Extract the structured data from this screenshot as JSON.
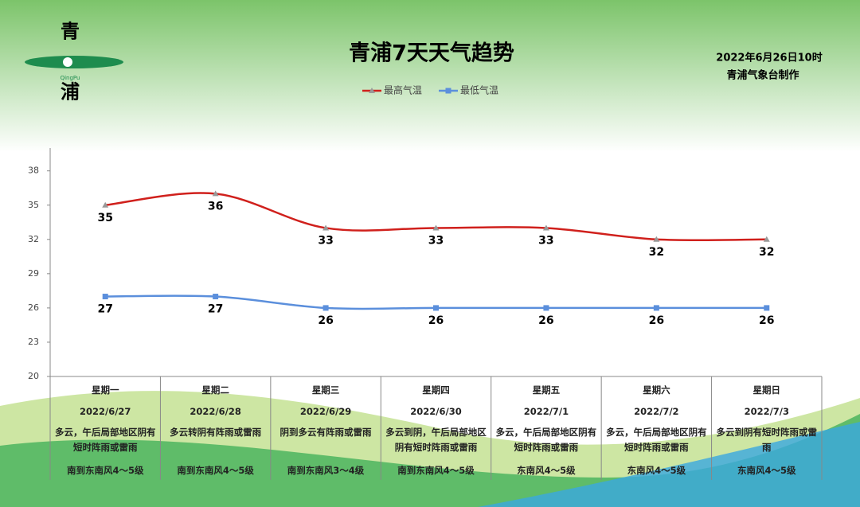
{
  "header": {
    "logo_top": "青",
    "logo_bottom": "浦",
    "logo_latin": "QingPu",
    "issued": "2022年6月26日10时",
    "issuer": "青浦气象台制作"
  },
  "chart_data": {
    "type": "line",
    "title": "青浦7天天气趋势",
    "categories": [
      "星期一",
      "星期二",
      "星期三",
      "星期四",
      "星期五",
      "星期六",
      "星期日"
    ],
    "series": [
      {
        "name": "最高气温",
        "color": "#d0201c",
        "marker": "triangle",
        "values": [
          35,
          36,
          33,
          33,
          33,
          32,
          32
        ]
      },
      {
        "name": "最低气温",
        "color": "#5b8fdc",
        "marker": "square",
        "values": [
          27,
          27,
          26,
          26,
          26,
          26,
          26
        ]
      }
    ],
    "ylim": [
      20,
      40
    ],
    "yticks": [
      20,
      23,
      26,
      29,
      32,
      35,
      38
    ],
    "legend": "top",
    "smooth": true
  },
  "table": {
    "dates": [
      "2022/6/27",
      "2022/6/28",
      "2022/6/29",
      "2022/6/30",
      "2022/7/1",
      "2022/7/2",
      "2022/7/3"
    ],
    "weather": [
      "多云，午后局部地区阴有短时阵雨或雷雨",
      "多云转阴有阵雨或雷雨",
      "阴到多云有阵雨或雷雨",
      "多云到阴，午后局部地区阴有短时阵雨或雷雨",
      "多云，午后局部地区阴有短时阵雨或雷雨",
      "多云，午后局部地区阴有短时阵雨或雷雨",
      "多云到阴有短时阵雨或雷雨"
    ],
    "wind": [
      "南到东南风4～5级",
      "南到东南风4～5级",
      "南到东南风3～4级",
      "南到东南风4～5级",
      "东南风4～5级",
      "东南风4～5级",
      "东南风4～5级"
    ]
  }
}
